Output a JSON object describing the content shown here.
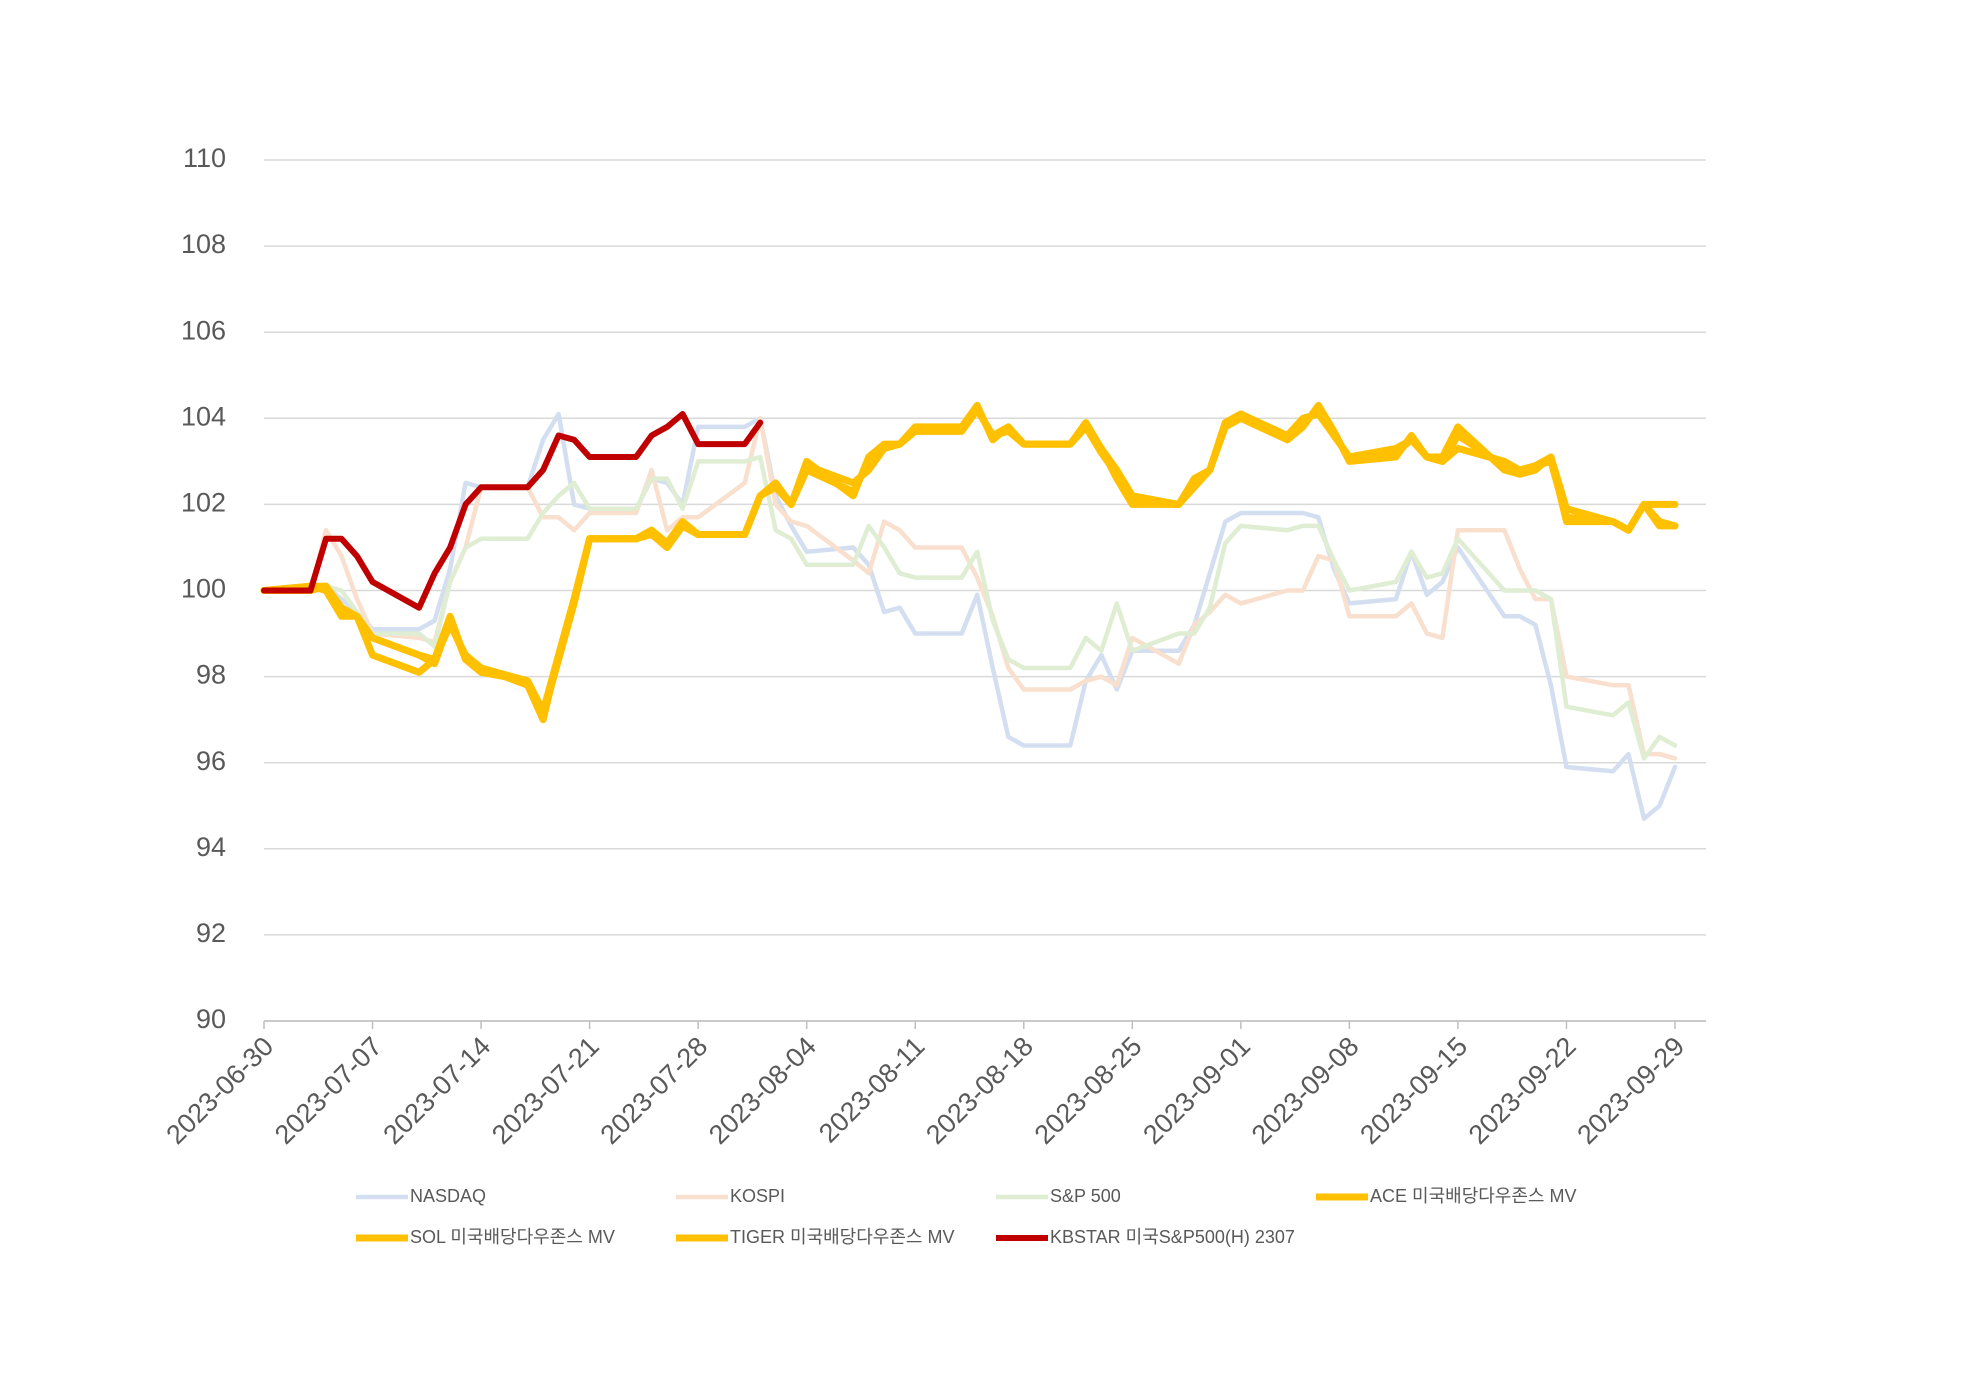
{
  "chart_data": {
    "type": "line",
    "x": [
      "2023-06-30",
      "2023-07-03",
      "2023-07-04",
      "2023-07-05",
      "2023-07-06",
      "2023-07-07",
      "2023-07-10",
      "2023-07-11",
      "2023-07-12",
      "2023-07-13",
      "2023-07-14",
      "2023-07-17",
      "2023-07-18",
      "2023-07-19",
      "2023-07-20",
      "2023-07-21",
      "2023-07-24",
      "2023-07-25",
      "2023-07-26",
      "2023-07-27",
      "2023-07-28",
      "2023-07-31",
      "2023-08-01",
      "2023-08-02",
      "2023-08-03",
      "2023-08-04",
      "2023-08-07",
      "2023-08-08",
      "2023-08-09",
      "2023-08-10",
      "2023-08-11",
      "2023-08-14",
      "2023-08-15",
      "2023-08-16",
      "2023-08-17",
      "2023-08-18",
      "2023-08-21",
      "2023-08-22",
      "2023-08-23",
      "2023-08-24",
      "2023-08-25",
      "2023-08-28",
      "2023-08-29",
      "2023-08-30",
      "2023-08-31",
      "2023-09-01",
      "2023-09-04",
      "2023-09-05",
      "2023-09-06",
      "2023-09-07",
      "2023-09-08",
      "2023-09-11",
      "2023-09-12",
      "2023-09-13",
      "2023-09-14",
      "2023-09-15",
      "2023-09-18",
      "2023-09-19",
      "2023-09-20",
      "2023-09-21",
      "2023-09-22",
      "2023-09-25",
      "2023-09-26",
      "2023-09-27",
      "2023-09-28",
      "2023-09-29"
    ],
    "xlim": [
      "2023-06-30",
      "2023-10-01"
    ],
    "xticks": [
      "2023-06-30",
      "2023-07-07",
      "2023-07-14",
      "2023-07-21",
      "2023-07-28",
      "2023-08-04",
      "2023-08-11",
      "2023-08-18",
      "2023-08-25",
      "2023-09-01",
      "2023-09-08",
      "2023-09-15",
      "2023-09-22",
      "2023-09-29"
    ],
    "ylim": [
      90,
      110
    ],
    "yticks": [
      90,
      92,
      94,
      96,
      98,
      100,
      102,
      104,
      106,
      108,
      110
    ],
    "grid": true,
    "legend": "bottom",
    "series": [
      {
        "name": "NASDAQ",
        "color": "#d3dff0",
        "values": [
          100,
          100.1,
          100.1,
          99.8,
          99.5,
          99.1,
          99.1,
          99.3,
          100.5,
          102.5,
          102.4,
          102.4,
          103.5,
          104.1,
          102.0,
          101.9,
          101.9,
          102.6,
          102.5,
          102.0,
          103.8,
          103.8,
          104.0,
          102.2,
          101.5,
          100.9,
          101.0,
          100.6,
          99.5,
          99.6,
          99.0,
          99.0,
          99.9,
          98.2,
          96.6,
          96.4,
          96.4,
          97.9,
          98.5,
          97.7,
          98.6,
          98.6,
          99.2,
          100.4,
          101.6,
          101.8,
          101.8,
          101.8,
          101.7,
          100.5,
          99.7,
          99.8,
          100.9,
          99.9,
          100.2,
          101.0,
          99.4,
          99.4,
          99.2,
          97.8,
          95.9,
          95.8,
          96.2,
          94.7,
          95.0,
          95.9
        ]
      },
      {
        "name": "KOSPI",
        "color": "#f9dfcd",
        "values": [
          100,
          100,
          101.4,
          100.8,
          99.8,
          99.0,
          98.9,
          98.8,
          100.2,
          101.0,
          102.4,
          102.4,
          101.7,
          101.7,
          101.4,
          101.8,
          101.8,
          102.8,
          101.4,
          101.7,
          101.7,
          102.5,
          104.0,
          102.0,
          101.6,
          101.5,
          100.7,
          100.4,
          101.6,
          101.4,
          101.0,
          101.0,
          100.3,
          99.4,
          98.2,
          97.7,
          97.7,
          97.9,
          98.0,
          97.8,
          98.9,
          98.3,
          99.2,
          99.5,
          99.9,
          99.7,
          100.0,
          100.0,
          100.8,
          100.7,
          99.4,
          99.4,
          99.7,
          99.0,
          98.9,
          101.4,
          101.4,
          100.5,
          99.8,
          99.8,
          98.0,
          97.8,
          97.8,
          96.2,
          96.2,
          96.1
        ]
      },
      {
        "name": "S&P 500",
        "color": "#dfedd3",
        "values": [
          100,
          100.1,
          100.1,
          100,
          99.5,
          99.0,
          99.0,
          98.7,
          100.2,
          101.0,
          101.2,
          101.2,
          101.8,
          102.2,
          102.5,
          101.9,
          101.9,
          102.6,
          102.6,
          101.9,
          103.0,
          103.0,
          103.1,
          101.4,
          101.2,
          100.6,
          100.6,
          101.5,
          101.0,
          100.4,
          100.3,
          100.3,
          100.9,
          99.3,
          98.4,
          98.2,
          98.2,
          98.9,
          98.6,
          99.7,
          98.6,
          99.0,
          99.0,
          99.6,
          101.1,
          101.5,
          101.4,
          101.5,
          101.5,
          100.7,
          100.0,
          100.2,
          100.9,
          100.3,
          100.4,
          101.2,
          100.0,
          100.0,
          100.0,
          99.8,
          97.3,
          97.1,
          97.4,
          96.1,
          96.6,
          96.4
        ]
      },
      {
        "name": "ACE 미국배당다우존스 MV",
        "color": "#ffc000",
        "values": [
          100,
          100.1,
          100.0,
          99.4,
          99.4,
          98.9,
          98.5,
          98.4,
          99.2,
          98.5,
          98.2,
          97.9,
          97.2,
          98.5,
          99.8,
          101.2,
          101.2,
          101.4,
          101.0,
          101.5,
          101.3,
          101.3,
          102.2,
          102.4,
          102.0,
          102.9,
          102.5,
          102.8,
          103.3,
          103.4,
          103.7,
          103.7,
          104.2,
          103.6,
          103.8,
          103.4,
          103.4,
          103.8,
          103.3,
          102.8,
          102.2,
          102.0,
          102.4,
          102.8,
          103.9,
          104.1,
          103.6,
          104.0,
          104.1,
          103.6,
          103.1,
          103.3,
          103.5,
          103.1,
          103.0,
          103.3,
          103.0,
          102.8,
          102.9,
          103.1,
          101.9,
          101.6,
          101.4,
          102.0,
          101.6,
          101.5
        ]
      },
      {
        "name": "SOL 미국배당다우존스 MV",
        "color": "#ffc000",
        "values": [
          100,
          100.1,
          100.1,
          99.6,
          99.4,
          98.5,
          98.1,
          98.4,
          99.4,
          98.4,
          98.2,
          97.8,
          97.0,
          98.5,
          99.8,
          101.2,
          101.2,
          101.4,
          101.1,
          101.6,
          101.3,
          101.3,
          102.2,
          102.5,
          102.0,
          103.0,
          102.2,
          103.1,
          103.4,
          103.4,
          103.8,
          103.8,
          104.3,
          103.5,
          103.8,
          103.4,
          103.4,
          103.9,
          103.3,
          102.6,
          102.0,
          102.0,
          102.6,
          102.8,
          103.9,
          104.1,
          103.5,
          103.8,
          104.3,
          103.7,
          103.0,
          103.1,
          103.6,
          103.1,
          103.1,
          103.8,
          102.8,
          102.7,
          102.8,
          103.1,
          101.6,
          101.6,
          101.4,
          102.0,
          102.0,
          102.0
        ]
      },
      {
        "name": "TIGER 미국배당다우존스 MV",
        "color": "#ffc000",
        "values": [
          100,
          100.0,
          100.1,
          99.5,
          99.4,
          98.9,
          98.5,
          98.3,
          99.3,
          98.4,
          98.1,
          97.9,
          97.1,
          98.4,
          99.7,
          101.2,
          101.2,
          101.3,
          101.0,
          101.5,
          101.3,
          101.3,
          102.2,
          102.4,
          102.0,
          102.8,
          102.3,
          103.0,
          103.3,
          103.4,
          103.7,
          103.7,
          104.2,
          103.6,
          103.7,
          103.4,
          103.4,
          103.8,
          103.2,
          102.7,
          102.1,
          102.0,
          102.5,
          102.8,
          103.8,
          104.0,
          103.5,
          103.9,
          104.2,
          103.6,
          103.1,
          103.2,
          103.5,
          103.1,
          103.0,
          103.6,
          102.9,
          102.8,
          102.9,
          103.0,
          101.7,
          101.6,
          101.4,
          102.0,
          101.5,
          101.5
        ]
      },
      {
        "name": "KBSTAR 미국S&P500(H) 2307",
        "color": "#c00000",
        "values": [
          100,
          100.0,
          101.2,
          101.2,
          100.8,
          100.2,
          99.6,
          100.4,
          101.0,
          102.0,
          102.4,
          102.4,
          102.8,
          103.6,
          103.5,
          103.1,
          103.1,
          103.6,
          103.8,
          104.1,
          103.4,
          103.4,
          103.9,
          null,
          null,
          null,
          null,
          null,
          null,
          null,
          null,
          null,
          null,
          null,
          null,
          null,
          null,
          null,
          null,
          null,
          null,
          null,
          null,
          null,
          null,
          null,
          null,
          null,
          null,
          null,
          null,
          null,
          null,
          null,
          null,
          null,
          null,
          null,
          null,
          null,
          null,
          null,
          null,
          null,
          null,
          null
        ]
      }
    ]
  }
}
